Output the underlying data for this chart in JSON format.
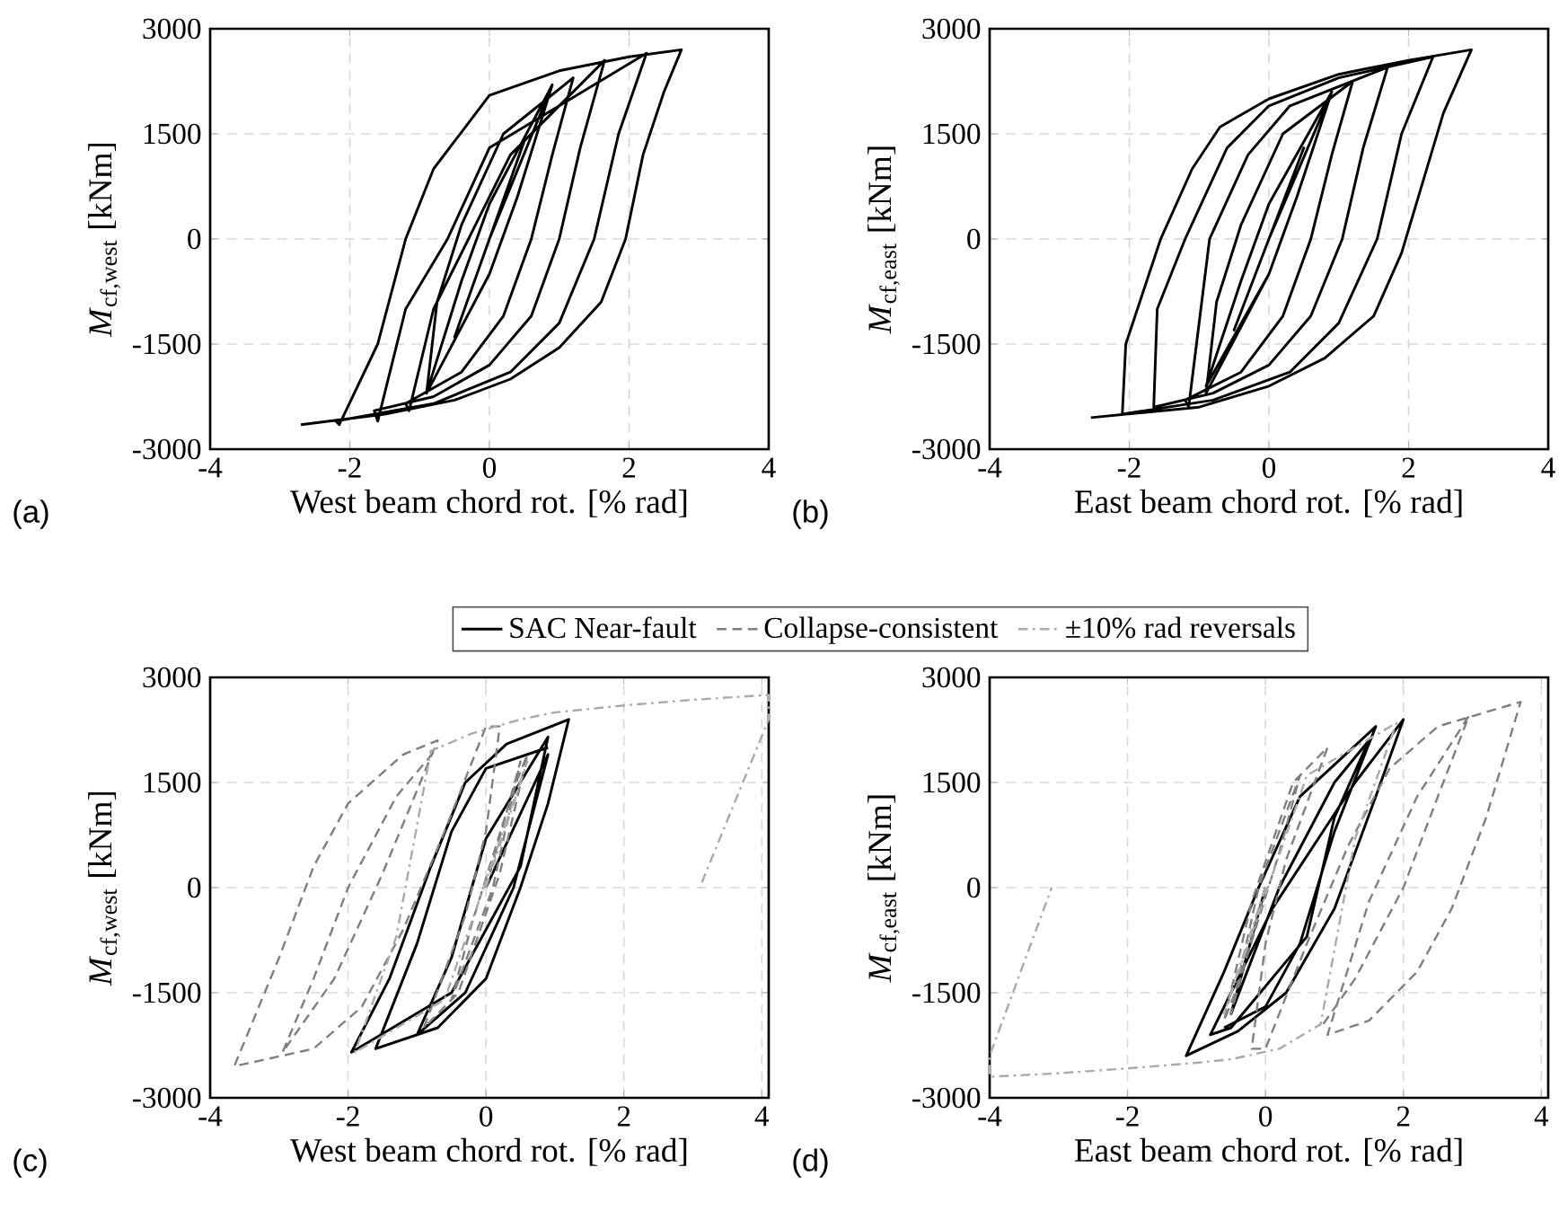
{
  "chart_data": [
    {
      "type": "line",
      "xlabel": "West beam chord rot. [% rad]",
      "ylabel": "*M*$_{cf,west}$ [kNm]",
      "xlim": [
        -4,
        4
      ],
      "ylim": [
        -3000,
        3000
      ],
      "xticks": [
        -4,
        -2,
        0,
        2,
        4
      ],
      "yticks": [
        -3000,
        -1500,
        0,
        1500,
        3000
      ],
      "grid": true,
      "annotations": [
        "(a)"
      ],
      "series": [
        {
          "color": "#000000",
          "line_style": "solid",
          "x": [
            0,
            0.5,
            0,
            -0.5,
            0,
            0.9,
            0.4,
            0,
            -0.9,
            -0.4,
            0,
            0.9,
            0.4,
            0,
            -0.9,
            -0.75,
            -0.4,
            0.2,
            1.2,
            0.9,
            0.6,
            0.2,
            -0.4,
            -1.2,
            -1.15,
            -0.8,
            -0.3,
            0.3,
            1.65,
            1.3,
            1.0,
            0.6,
            0,
            -0.8,
            -1.65,
            -1.6,
            -1.2,
            -0.6,
            0,
            1,
            2.25,
            1.85,
            1.5,
            1.0,
            0.3,
            -0.8,
            -2.2,
            -2.15,
            -1.6,
            -1.2,
            -0.8,
            0,
            1,
            2,
            2.75,
            2.5,
            2.2,
            1.95,
            1.6,
            1.0,
            0.3,
            -0.5,
            -1.5,
            -2.7
          ],
          "values": [
            0,
            1400,
            0,
            -1400,
            0,
            2200,
            600,
            -500,
            -2200,
            -600,
            500,
            2200,
            600,
            -500,
            -2200,
            -900,
            200,
            1500,
            2300,
            1200,
            0,
            -1100,
            -1900,
            -2350,
            -2450,
            -1000,
            0,
            1200,
            2550,
            1300,
            0,
            -1100,
            -1800,
            -2250,
            -2450,
            -2600,
            -1000,
            0,
            1300,
            1900,
            2650,
            1500,
            0,
            -1200,
            -1900,
            -2350,
            -2600,
            -2650,
            -1500,
            0,
            1000,
            2050,
            2400,
            2600,
            2700,
            2100,
            1200,
            0,
            -900,
            -1550,
            -2000,
            -2300,
            -2500,
            -2650
          ]
        }
      ]
    },
    {
      "type": "line",
      "xlabel": "East beam chord rot. [% rad]",
      "ylabel": "*M*$_{cf,east}$ [kNm]",
      "xlim": [
        -4,
        4
      ],
      "ylim": [
        -3000,
        3000
      ],
      "xticks": [
        -4,
        -2,
        0,
        2,
        4
      ],
      "yticks": [
        -3000,
        -1500,
        0,
        1500,
        3000
      ],
      "grid": true,
      "annotations": [
        "(b)"
      ],
      "series": [
        {
          "color": "#000000",
          "line_style": "solid",
          "x": [
            0,
            0.5,
            0,
            -0.5,
            0,
            0.9,
            0.4,
            0,
            -0.9,
            -0.4,
            0,
            0.9,
            0.4,
            0,
            -0.9,
            -0.75,
            -0.4,
            0.2,
            1.2,
            0.9,
            0.6,
            0.2,
            -0.4,
            -1.2,
            -1.15,
            -0.85,
            -0.3,
            0.3,
            1.7,
            1.35,
            1.05,
            0.6,
            0,
            -0.8,
            -1.65,
            -1.6,
            -1.2,
            -0.6,
            0,
            1,
            2.35,
            1.9,
            1.55,
            1.0,
            0.3,
            -0.8,
            -2.1,
            -2.05,
            -1.55,
            -1.1,
            -0.7,
            0,
            1,
            2,
            2.9,
            2.5,
            2.2,
            1.9,
            1.5,
            0.8,
            0,
            -1,
            -2.55
          ],
          "values": [
            0,
            1300,
            0,
            -1300,
            0,
            2100,
            600,
            -500,
            -2100,
            -600,
            500,
            2100,
            600,
            -500,
            -2200,
            -900,
            200,
            1500,
            2250,
            1200,
            0,
            -1100,
            -1900,
            -2300,
            -2400,
            0,
            1200,
            1900,
            2450,
            1300,
            0,
            -1100,
            -1800,
            -2200,
            -2400,
            -1000,
            0,
            1300,
            1900,
            2300,
            2600,
            1500,
            0,
            -1200,
            -1900,
            -2300,
            -2500,
            -1500,
            0,
            1000,
            1600,
            2000,
            2350,
            2550,
            2700,
            1800,
            800,
            -200,
            -1100,
            -1700,
            -2100,
            -2400,
            -2550
          ]
        }
      ]
    },
    {
      "type": "line",
      "xlabel": "West beam chord rot. [% rad]",
      "ylabel": "*M*$_{cf,west}$ [kNm]",
      "xlim": [
        -4,
        4.1
      ],
      "ylim": [
        -3000,
        3000
      ],
      "xticks": [
        -4,
        -2,
        0,
        2,
        4
      ],
      "yticks": [
        -3000,
        -1500,
        0,
        1500,
        3000
      ],
      "grid": true,
      "legend": "top",
      "annotations": [
        "(c)"
      ],
      "series": [
        {
          "name": "SAC Near-fault",
          "color": "#000000",
          "line_style": "solid",
          "x": [
            0,
            0.9,
            0.4,
            -0.3,
            -1.0,
            -0.5,
            0,
            0.9,
            0.5,
            -0.5,
            -1.95,
            -1.4,
            -0.8,
            -0.3,
            0.3,
            1.2,
            0.9,
            0.5,
            0,
            -0.7,
            -1.6,
            -1.0,
            -0.5,
            0,
            0.9
          ],
          "values": [
            0,
            1900,
            0,
            -1500,
            -2100,
            -1000,
            700,
            2150,
            300,
            -1500,
            -2350,
            -1300,
            300,
            1500,
            2050,
            2400,
            1200,
            0,
            -1300,
            -2000,
            -2300,
            -800,
            800,
            1700,
            2000
          ]
        },
        {
          "name": "Collapse-consistent",
          "color": "#7f7f7f",
          "line_style": "dashed",
          "x": [
            0,
            0.5,
            0.1,
            -0.5,
            -0.2,
            0.4,
            0.6,
            0.2,
            -0.4,
            -0.9,
            -0.3,
            0,
            0.2,
            0,
            -0.6,
            -1.2,
            -1.8,
            -2.5,
            -3.65,
            -3.0,
            -2.5,
            -2.0,
            -1.2,
            -0.7,
            -1.5,
            -2.2,
            -2.95,
            -2.5,
            -2.0,
            -1.3,
            -0.7
          ],
          "values": [
            0,
            1800,
            0,
            -1600,
            -500,
            1400,
            1900,
            200,
            -1500,
            -2000,
            -400,
            800,
            2300,
            2300,
            800,
            -600,
            -1700,
            -2300,
            -2550,
            -1000,
            300,
            1200,
            1900,
            2100,
            200,
            -1300,
            -2350,
            -1300,
            0,
            1300,
            2000
          ]
        },
        {
          "name": "±10% rad reversals",
          "color": "#aaaaaa",
          "line_style": "dashdot",
          "x": [
            0,
            0.6,
            -0.6,
            -1.9,
            -1.3,
            -0.8,
            -0.2,
            0.5,
            1,
            2,
            3,
            4.1,
            4.1,
            3.1
          ],
          "values": [
            0,
            1800,
            -1600,
            -2350,
            -700,
            1950,
            2200,
            2400,
            2500,
            2600,
            2680,
            2750,
            2400,
            0
          ]
        }
      ]
    },
    {
      "type": "line",
      "xlabel": "East beam chord rot. [% rad]",
      "ylabel": "*M*$_{cf,east}$ [kNm]",
      "xlim": [
        -4,
        4.1
      ],
      "ylim": [
        -3000,
        3000
      ],
      "xticks": [
        -4,
        -2,
        0,
        2,
        4
      ],
      "yticks": [
        -3000,
        -1500,
        0,
        1500,
        3000
      ],
      "grid": true,
      "annotations": [
        "(d)"
      ],
      "series": [
        {
          "color": "#000000",
          "line_style": "solid",
          "x": [
            0,
            -0.5,
            0.2,
            1.0,
            1.5,
            1.0,
            0.6,
            -0.5,
            -0.8,
            0.1,
            1.3,
            2.0,
            1.6,
            1.0,
            0.3,
            -0.4,
            -1.15,
            -0.6,
            -0.1,
            0.5,
            1.6,
            1.0,
            0.5,
            0,
            -0.6
          ],
          "values": [
            0,
            -1800,
            0,
            1500,
            2100,
            1000,
            -700,
            -2000,
            -2100,
            -300,
            1500,
            2400,
            1300,
            -300,
            -1500,
            -2050,
            -2400,
            -1200,
            0,
            1300,
            2300,
            800,
            -800,
            -1700,
            -2000
          ]
        },
        {
          "color": "#7f7f7f",
          "line_style": "dashed",
          "x": [
            0,
            -0.5,
            -0.1,
            0.5,
            0.2,
            -0.4,
            -0.6,
            -0.2,
            0.4,
            0.9,
            0.3,
            0,
            -0.2,
            0,
            0.6,
            1.2,
            1.8,
            2.5,
            3.7,
            3.2,
            2.7,
            2.2,
            1.5,
            0.9,
            1.5,
            2.2,
            2.95,
            2.5,
            2.0,
            1.3,
            0.8
          ],
          "values": [
            0,
            -1800,
            0,
            1600,
            500,
            -1400,
            -1900,
            -200,
            1500,
            2000,
            400,
            -800,
            -2300,
            -2300,
            -800,
            600,
            1700,
            2300,
            2650,
            1000,
            -300,
            -1200,
            -1900,
            -2100,
            -200,
            1300,
            2450,
            1300,
            0,
            -1300,
            -2000
          ]
        },
        {
          "color": "#aaaaaa",
          "line_style": "dashdot",
          "x": [
            0,
            -0.6,
            0.6,
            1.9,
            1.3,
            0.8,
            0.2,
            -0.5,
            -1,
            -2,
            -3,
            -4,
            -4,
            -3.1
          ],
          "values": [
            0,
            -1800,
            1600,
            2350,
            700,
            -1950,
            -2300,
            -2450,
            -2500,
            -2580,
            -2650,
            -2700,
            -2400,
            0
          ]
        }
      ]
    }
  ]
}
